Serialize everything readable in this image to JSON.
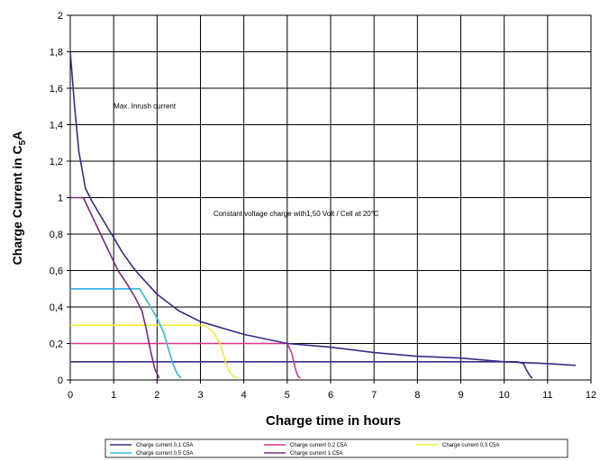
{
  "chart_data": {
    "type": "line",
    "xlabel": "Charge time in hours",
    "ylabel_main": "Charge Current in C",
    "ylabel_sub": "5",
    "ylabel_tail": "A",
    "xlim": [
      0,
      12
    ],
    "ylim": [
      0,
      2
    ],
    "x_ticks": [
      "0",
      "1",
      "2",
      "3",
      "4",
      "5",
      "6",
      "7",
      "8",
      "9",
      "10",
      "11",
      "12"
    ],
    "y_ticks": [
      "0",
      "0,2",
      "0,4",
      "0,6",
      "0,8",
      "1",
      "1,2",
      "1,4",
      "1,6",
      "1,8",
      "2"
    ],
    "grid": true,
    "legend_position": "bottom",
    "annotations": [
      {
        "text": "Max. Inrush current",
        "x": 1.0,
        "y": 1.49
      },
      {
        "text": "Constant voltage charge with1,50 Volt / Cell at 20°C",
        "x": 3.3,
        "y": 0.9
      }
    ],
    "series": [
      {
        "name": "Charge current 0,1 C5A",
        "color": "#3b2a86",
        "points": [
          [
            0,
            0.1
          ],
          [
            10.3,
            0.1
          ],
          [
            10.45,
            0.09
          ],
          [
            10.5,
            0.06
          ],
          [
            10.55,
            0.04
          ],
          [
            10.6,
            0.02
          ],
          [
            10.65,
            0.01
          ]
        ]
      },
      {
        "name": "Charge current 0,2 C5A",
        "color": "#d8348c",
        "points": [
          [
            0,
            0.2
          ],
          [
            5.0,
            0.2
          ],
          [
            5.1,
            0.15
          ],
          [
            5.15,
            0.1
          ],
          [
            5.2,
            0.05
          ],
          [
            5.25,
            0.02
          ],
          [
            5.3,
            0.01
          ]
        ]
      },
      {
        "name": "Charge current 0,3 C5A",
        "color": "#f0ec3c",
        "points": [
          [
            0,
            0.3
          ],
          [
            3.1,
            0.3
          ],
          [
            3.3,
            0.26
          ],
          [
            3.45,
            0.2
          ],
          [
            3.55,
            0.12
          ],
          [
            3.65,
            0.05
          ],
          [
            3.75,
            0.02
          ],
          [
            3.85,
            0.01
          ]
        ]
      },
      {
        "name": "Charge current 0,5 C5A",
        "color": "#33b5e0",
        "points": [
          [
            0,
            0.5
          ],
          [
            1.6,
            0.5
          ],
          [
            1.8,
            0.42
          ],
          [
            2.0,
            0.34
          ],
          [
            2.15,
            0.26
          ],
          [
            2.25,
            0.18
          ],
          [
            2.35,
            0.1
          ],
          [
            2.45,
            0.04
          ],
          [
            2.55,
            0.01
          ]
        ]
      },
      {
        "name": "Charge current 1 C5A",
        "color": "#7a2a7a",
        "points": [
          [
            0,
            1.0
          ],
          [
            0.3,
            1.0
          ],
          [
            0.5,
            0.9
          ],
          [
            0.7,
            0.8
          ],
          [
            0.9,
            0.7
          ],
          [
            1.1,
            0.6
          ],
          [
            1.3,
            0.53
          ],
          [
            1.5,
            0.45
          ],
          [
            1.65,
            0.38
          ],
          [
            1.75,
            0.28
          ],
          [
            1.85,
            0.16
          ],
          [
            1.95,
            0.06
          ],
          [
            2.05,
            0.01
          ]
        ]
      },
      {
        "name": "Max. Inrush current",
        "color": "#3b2a86",
        "points": [
          [
            0,
            1.8
          ],
          [
            0.1,
            1.5
          ],
          [
            0.2,
            1.25
          ],
          [
            0.35,
            1.05
          ],
          [
            0.5,
            0.98
          ],
          [
            0.7,
            0.9
          ],
          [
            0.9,
            0.82
          ],
          [
            1.0,
            0.78
          ],
          [
            1.2,
            0.7
          ],
          [
            1.5,
            0.6
          ],
          [
            2.0,
            0.47
          ],
          [
            2.5,
            0.38
          ],
          [
            3.0,
            0.32
          ],
          [
            4.0,
            0.25
          ],
          [
            5.0,
            0.2
          ],
          [
            6.0,
            0.18
          ],
          [
            7.0,
            0.15
          ],
          [
            8.0,
            0.13
          ],
          [
            9.0,
            0.12
          ],
          [
            10.0,
            0.1
          ],
          [
            11.0,
            0.09
          ],
          [
            11.65,
            0.08
          ]
        ]
      }
    ],
    "legend": [
      {
        "label": "Charge current 0,1 C5A",
        "color": "#3b2a86"
      },
      {
        "label": "Charge current 0,2 C5A",
        "color": "#d8348c"
      },
      {
        "label": "Charge current 0,3 C5A",
        "color": "#f0ec3c"
      },
      {
        "label": "Charge current 0,5 C5A",
        "color": "#33b5e0"
      },
      {
        "label": "Charge current 1 C5A",
        "color": "#7a2a7a"
      }
    ]
  }
}
